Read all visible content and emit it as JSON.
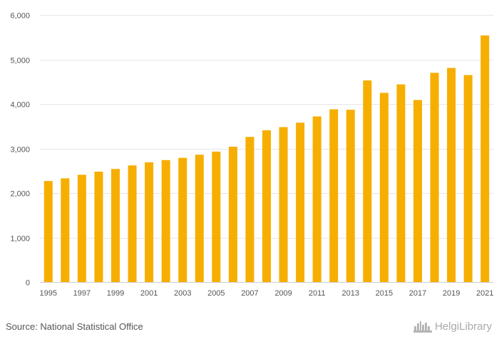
{
  "chart_data": {
    "type": "bar",
    "categories": [
      "1995",
      "1996",
      "1997",
      "1998",
      "1999",
      "2000",
      "2001",
      "2002",
      "2003",
      "2004",
      "2005",
      "2006",
      "2007",
      "2008",
      "2009",
      "2010",
      "2011",
      "2012",
      "2013",
      "2014",
      "2015",
      "2016",
      "2017",
      "2018",
      "2019",
      "2020",
      "2021"
    ],
    "values": [
      2270,
      2330,
      2410,
      2480,
      2540,
      2620,
      2690,
      2740,
      2790,
      2860,
      2930,
      3040,
      3260,
      3410,
      3480,
      3580,
      3720,
      3880,
      3870,
      4530,
      4250,
      4440,
      4090,
      4700,
      4810,
      4650,
      5540
    ],
    "x_tick_labels": [
      "1995",
      "1997",
      "1999",
      "2001",
      "2003",
      "2005",
      "2007",
      "2009",
      "2011",
      "2013",
      "2015",
      "2017",
      "2019",
      "2021"
    ],
    "y_ticks": [
      0,
      1000,
      2000,
      3000,
      4000,
      5000,
      6000
    ],
    "y_tick_labels": [
      "0",
      "1,000",
      "2,000",
      "3,000",
      "4,000",
      "5,000",
      "6,000"
    ],
    "ylim": [
      0,
      6000
    ],
    "title": "",
    "xlabel": "",
    "ylabel": "",
    "grid": true,
    "bar_color": "#f6ae00"
  },
  "footer": {
    "source": "Source: National Statistical Office",
    "brand": "HelgiLibrary"
  },
  "brand_icon": "city-skyline-icon"
}
